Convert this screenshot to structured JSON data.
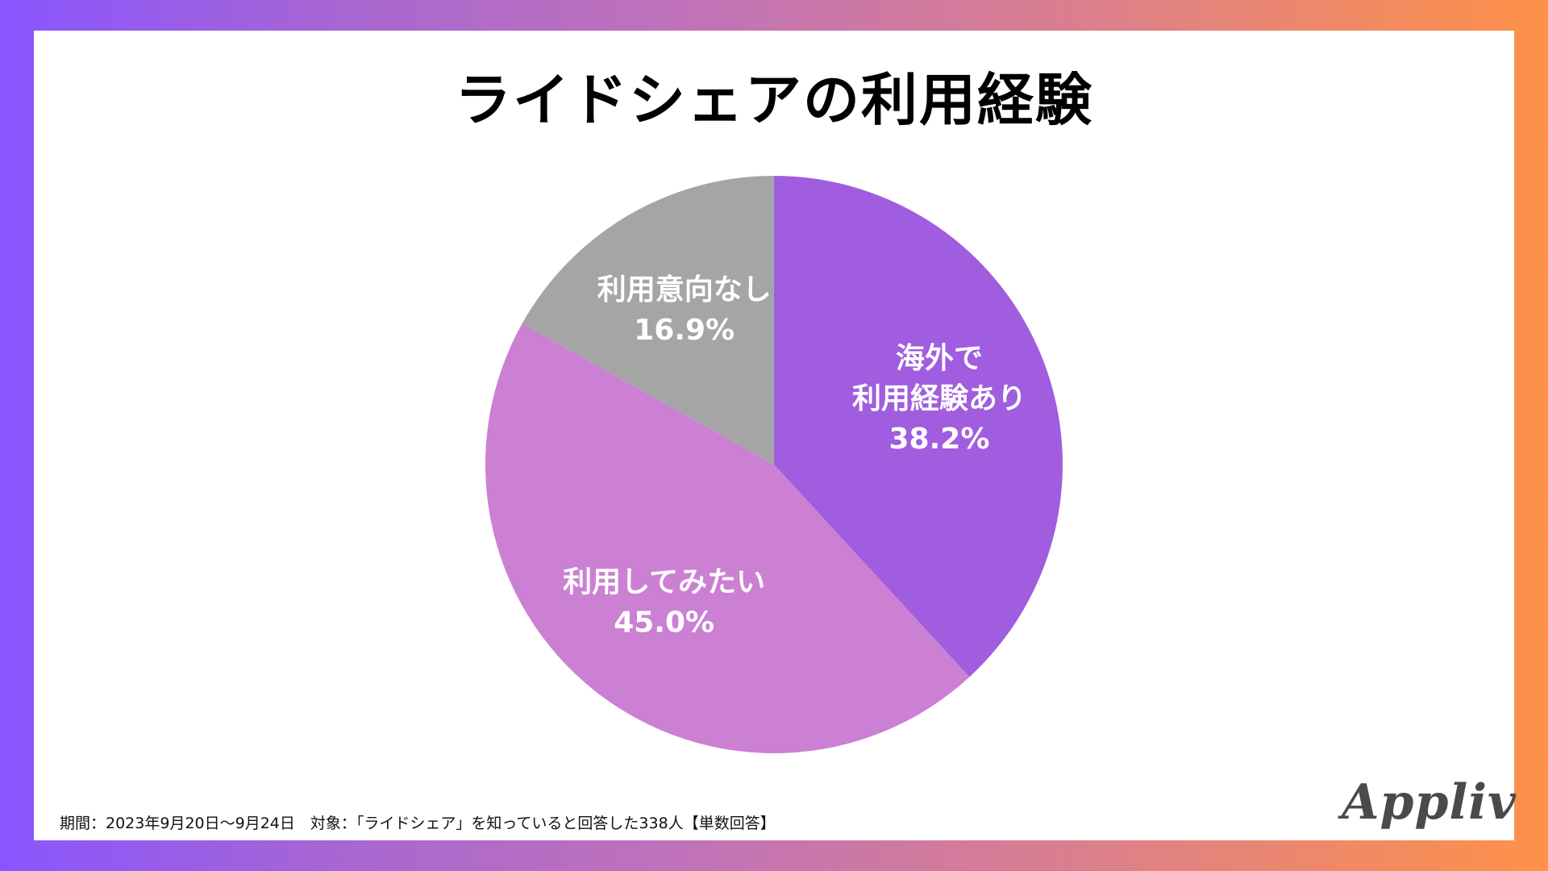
{
  "title": "ライドシェアの利用経験",
  "footnote": "期間：2023年9月20日〜9月24日　対象：「ライドシェア」を知っていると回答した338人【単数回答】",
  "logo": "Appliv",
  "colors": {
    "background_gradient_start": "#8a55ff",
    "background_gradient_end": "#ff9148",
    "card": "#ffffff",
    "label_text": "#ffffff"
  },
  "chart_data": {
    "type": "pie",
    "title": "ライドシェアの利用経験",
    "start_angle_deg": 0,
    "direction": "clockwise",
    "legend": "none",
    "slices": [
      {
        "label_lines": [
          "海外で",
          "利用経験あり"
        ],
        "value": 38.2,
        "value_label": "38.2%",
        "color": "#a05ddf"
      },
      {
        "label_lines": [
          "利用してみたい"
        ],
        "value": 45.0,
        "value_label": "45.0%",
        "color": "#cb80d3"
      },
      {
        "label_lines": [
          "利用意向なし"
        ],
        "value": 16.9,
        "value_label": "16.9%",
        "color": "#a5a5a5"
      }
    ]
  }
}
